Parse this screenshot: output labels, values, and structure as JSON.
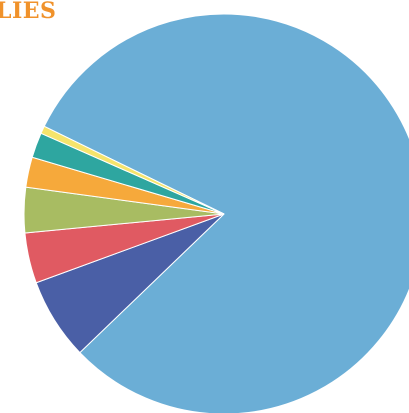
{
  "title": "LIES",
  "colors": {
    "title": "#F0922B"
  },
  "chart_data": {
    "type": "pie",
    "title": "LIES",
    "start_angle_deg": 206,
    "direction": "clockwise",
    "slices": [
      {
        "value": 79.3,
        "color": "#6BAED6"
      },
      {
        "value": 6.5,
        "color": "#4A5FA6"
      },
      {
        "value": 4.0,
        "color": "#E05A62"
      },
      {
        "value": 3.6,
        "color": "#A8BC62"
      },
      {
        "value": 2.4,
        "color": "#F6A93B"
      },
      {
        "value": 2.0,
        "color": "#2EA6A0"
      },
      {
        "value": 0.6,
        "color": "#F5E46C"
      }
    ]
  }
}
